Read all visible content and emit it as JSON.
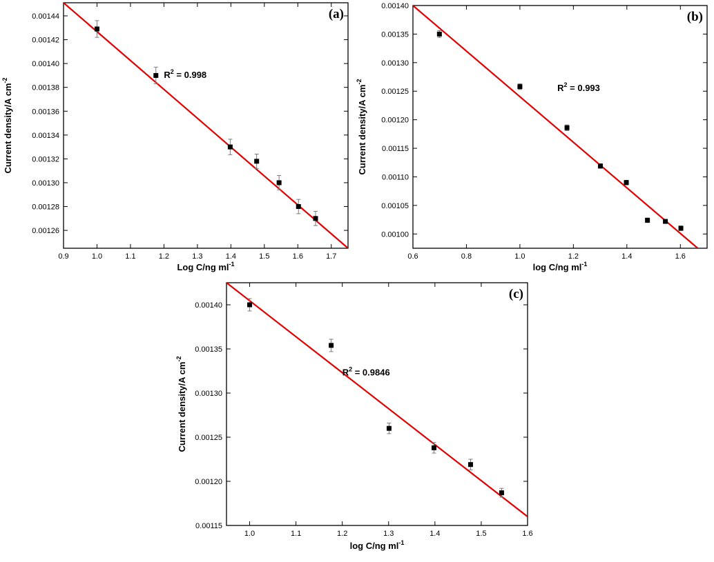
{
  "colors": {
    "fit_line": "#e00000",
    "markers": "#000000",
    "error_bars": "#7a7a7a",
    "background": "#ffffff"
  },
  "chart_data": [
    {
      "type": "scatter",
      "panel_label": "(a)",
      "xlabel": "Log C/ng ml",
      "xlabel_sup": "-1",
      "ylabel": "Current density/A cm",
      "ylabel_sup": "-2",
      "xlim": [
        0.9,
        1.75
      ],
      "ylim": [
        0.001245,
        0.001451
      ],
      "xticks": [
        0.9,
        1.0,
        1.1,
        1.2,
        1.3,
        1.4,
        1.5,
        1.6,
        1.7
      ],
      "xtick_labels": [
        "0.9",
        "1.0",
        "1.1",
        "1.2",
        "1.3",
        "1.4",
        "1.5",
        "1.6",
        "1.7"
      ],
      "yticks": [
        0.00126,
        0.00128,
        0.0013,
        0.00132,
        0.00134,
        0.00136,
        0.00138,
        0.0014,
        0.00142,
        0.00144
      ],
      "ytick_labels": [
        "0.00126",
        "0.00128",
        "0.00130",
        "0.00132",
        "0.00134",
        "0.00136",
        "0.00138",
        "0.00140",
        "0.00142",
        "0.00144"
      ],
      "points": [
        {
          "x": 1.0,
          "y": 0.001429,
          "err": 7e-06
        },
        {
          "x": 1.176,
          "y": 0.00139,
          "err": 7e-06
        },
        {
          "x": 1.398,
          "y": 0.00133,
          "err": 6.5e-06
        },
        {
          "x": 1.477,
          "y": 0.001318,
          "err": 6e-06
        },
        {
          "x": 1.544,
          "y": 0.0013,
          "err": 6e-06
        },
        {
          "x": 1.602,
          "y": 0.00128,
          "err": 6e-06
        },
        {
          "x": 1.653,
          "y": 0.00127,
          "err": 6e-06
        }
      ],
      "fit": {
        "x0": 0.9,
        "y0": 0.001451,
        "x1": 1.75,
        "y1": 0.001245
      },
      "r2_prefix": "R",
      "r2_sup": "2",
      "r2_text": "= 0.998",
      "r2_at": {
        "x": 1.2,
        "y": 0.001388
      }
    },
    {
      "type": "scatter",
      "panel_label": "(b)",
      "xlabel": "log C/ng ml",
      "xlabel_sup": "-1",
      "ylabel": "Current density/A cm",
      "ylabel_sup": "-2",
      "xlim": [
        0.6,
        1.7
      ],
      "ylim": [
        0.000975,
        0.0014
      ],
      "xticks": [
        0.6,
        0.8,
        1.0,
        1.2,
        1.4,
        1.6
      ],
      "xtick_labels": [
        "0.6",
        "0.8",
        "1.0",
        "1.2",
        "1.4",
        "1.6"
      ],
      "yticks": [
        0.001,
        0.00105,
        0.0011,
        0.00115,
        0.0012,
        0.00125,
        0.0013,
        0.00135,
        0.0014
      ],
      "ytick_labels": [
        "0.00100",
        "0.00105",
        "0.00110",
        "0.00115",
        "0.00120",
        "0.00125",
        "0.00130",
        "0.00135",
        "0.00140"
      ],
      "points": [
        {
          "x": 0.699,
          "y": 0.00135,
          "err": 6e-06
        },
        {
          "x": 1.0,
          "y": 0.001258,
          "err": 5e-06
        },
        {
          "x": 1.176,
          "y": 0.001186,
          "err": 5e-06
        },
        {
          "x": 1.301,
          "y": 0.001119,
          "err": 4e-06
        },
        {
          "x": 1.398,
          "y": 0.00109,
          "err": 4e-06
        },
        {
          "x": 1.477,
          "y": 0.001024,
          "err": 4e-06
        },
        {
          "x": 1.544,
          "y": 0.001022,
          "err": 3e-06
        },
        {
          "x": 1.602,
          "y": 0.00101,
          "err": 4e-06
        }
      ],
      "fit": {
        "x0": 0.6,
        "y0": 0.0014,
        "x1": 1.665,
        "y1": 0.000975
      },
      "r2_prefix": "R",
      "r2_sup": "2",
      "r2_text": "= 0.993",
      "r2_at": {
        "x": 1.14,
        "y": 0.00125
      }
    },
    {
      "type": "scatter",
      "panel_label": "(c)",
      "xlabel": "log C/ng ml",
      "xlabel_sup": "-1",
      "ylabel": "Current density/A cm",
      "ylabel_sup": "-2",
      "xlim": [
        0.95,
        1.6
      ],
      "ylim": [
        0.00115,
        0.001425
      ],
      "xticks": [
        1.0,
        1.1,
        1.2,
        1.3,
        1.4,
        1.5,
        1.6
      ],
      "xtick_labels": [
        "1.0",
        "1.1",
        "1.2",
        "1.3",
        "1.4",
        "1.5",
        "1.6"
      ],
      "yticks": [
        0.00115,
        0.0012,
        0.00125,
        0.0013,
        0.00135,
        0.0014
      ],
      "ytick_labels": [
        "0.00115",
        "0.00120",
        "0.00125",
        "0.00130",
        "0.00135",
        "0.00140"
      ],
      "points": [
        {
          "x": 1.0,
          "y": 0.0014,
          "err": 7e-06
        },
        {
          "x": 1.176,
          "y": 0.001354,
          "err": 7e-06
        },
        {
          "x": 1.301,
          "y": 0.00126,
          "err": 6e-06
        },
        {
          "x": 1.398,
          "y": 0.001238,
          "err": 6e-06
        },
        {
          "x": 1.477,
          "y": 0.001219,
          "err": 6e-06
        },
        {
          "x": 1.544,
          "y": 0.001187,
          "err": 5e-06
        }
      ],
      "fit": {
        "x0": 0.95,
        "y0": 0.001425,
        "x1": 1.6,
        "y1": 0.00116
      },
      "r2_prefix": "R",
      "r2_sup": "2",
      "r2_text": "= 0.9846",
      "r2_at": {
        "x": 1.2,
        "y": 0.00132
      }
    }
  ]
}
